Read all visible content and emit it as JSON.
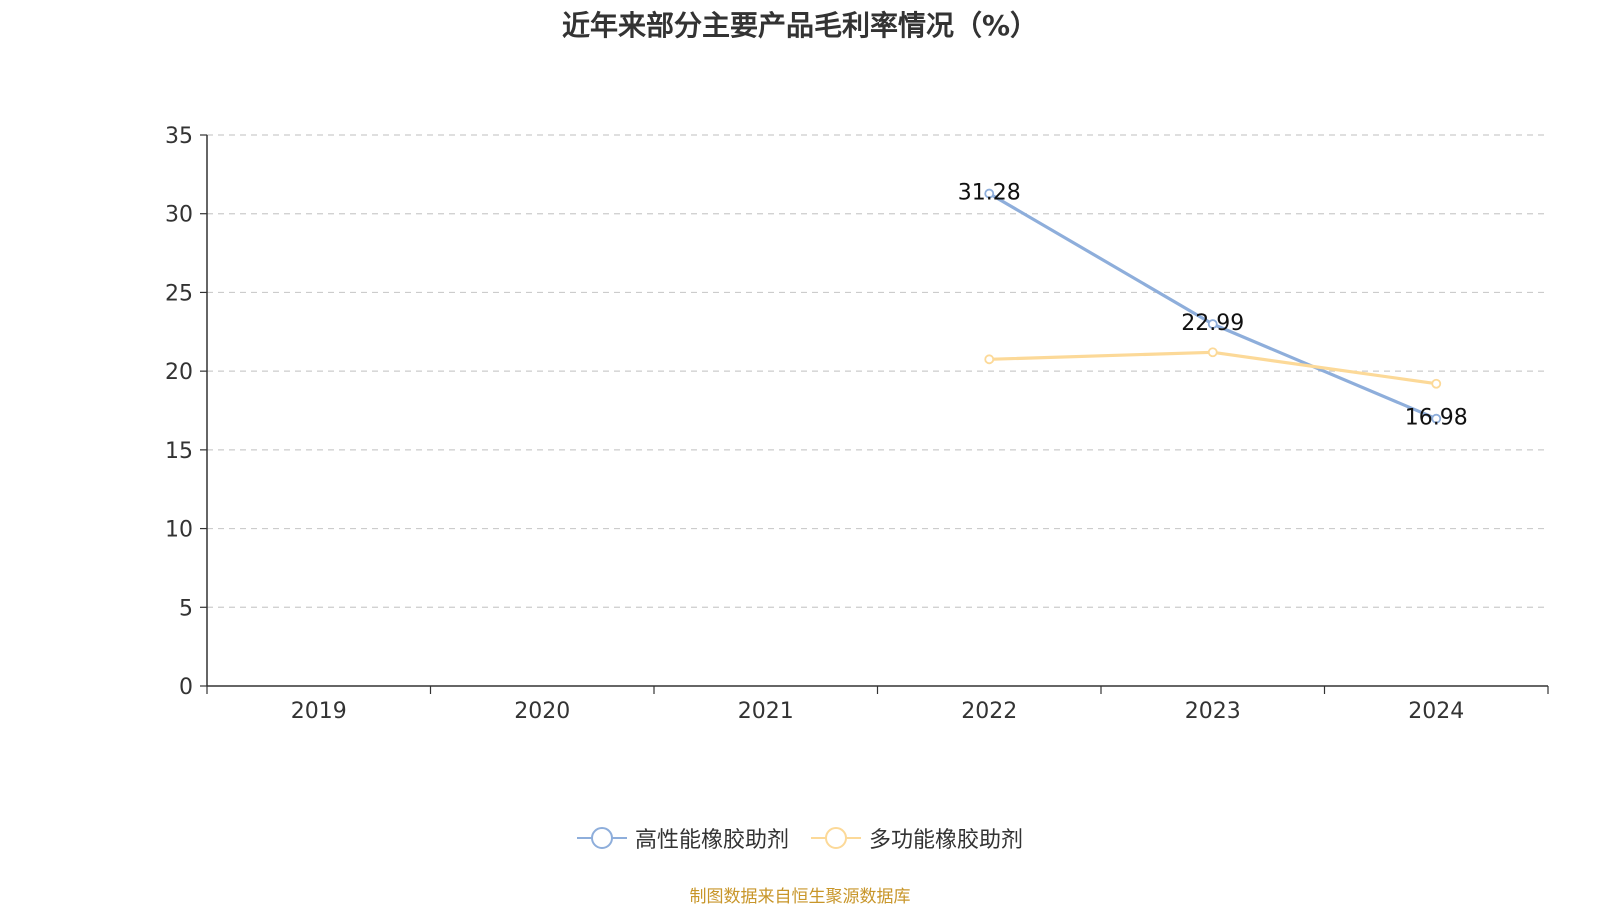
{
  "chart_data": {
    "type": "line",
    "title": "近年来部分主要产品毛利率情况（%）",
    "categories": [
      "2019",
      "2020",
      "2021",
      "2022",
      "2023",
      "2024"
    ],
    "ylim": [
      0,
      35
    ],
    "yticks": [
      0,
      5,
      10,
      15,
      20,
      25,
      30,
      35
    ],
    "grid": true,
    "legend_position": "bottom",
    "series": [
      {
        "name": "高性能橡胶助剂",
        "color": "#8eaedb",
        "values": [
          null,
          null,
          null,
          31.28,
          22.99,
          16.98
        ],
        "labels": [
          null,
          null,
          null,
          "31.28",
          "22.99",
          "16.98"
        ]
      },
      {
        "name": "多功能橡胶助剂",
        "color": "#fcd998",
        "values": [
          null,
          null,
          null,
          20.75,
          21.2,
          19.2
        ],
        "labels": [
          null,
          null,
          null,
          null,
          null,
          null
        ]
      }
    ]
  },
  "source_note": "制图数据来自恒生聚源数据库"
}
